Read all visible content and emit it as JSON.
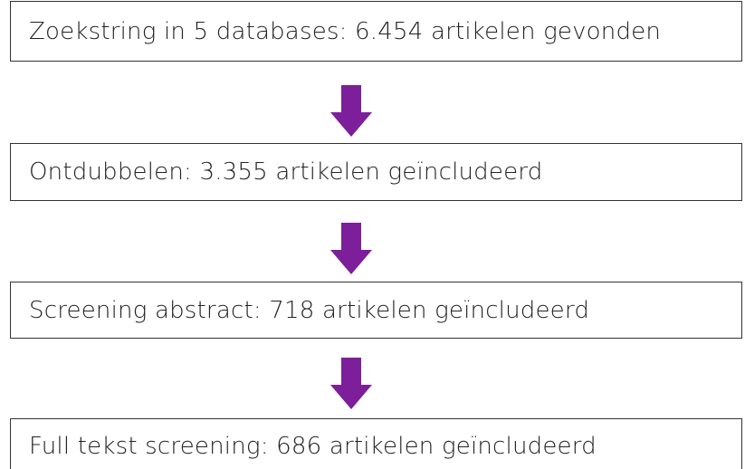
{
  "nodes": [
    {
      "label": "Zoekstring in 5 databases: 6.454 artikelen gevonden"
    },
    {
      "label": "Ontdubbelen: 3.355 artikelen geïncludeerd"
    },
    {
      "label": "Screening abstract: 718 artikelen geïncludeerd"
    },
    {
      "label": "Full tekst screening: 686 artikelen geïncludeerd"
    }
  ]
}
